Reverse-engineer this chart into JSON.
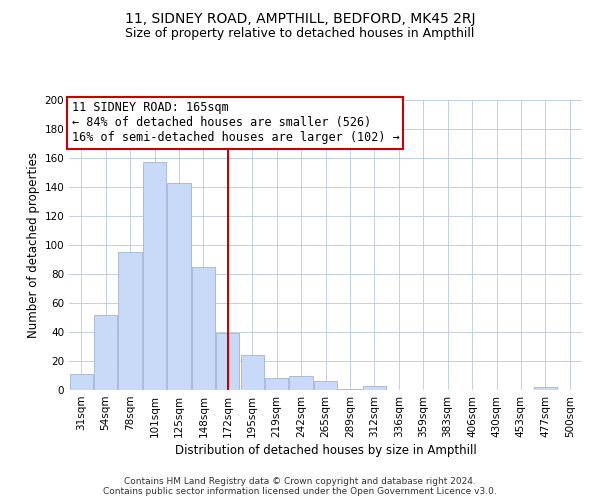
{
  "title": "11, SIDNEY ROAD, AMPTHILL, BEDFORD, MK45 2RJ",
  "subtitle": "Size of property relative to detached houses in Ampthill",
  "xlabel": "Distribution of detached houses by size in Ampthill",
  "ylabel": "Number of detached properties",
  "footer_line1": "Contains HM Land Registry data © Crown copyright and database right 2024.",
  "footer_line2": "Contains public sector information licensed under the Open Government Licence v3.0.",
  "annotation_line1": "11 SIDNEY ROAD: 165sqm",
  "annotation_line2": "← 84% of detached houses are smaller (526)",
  "annotation_line3": "16% of semi-detached houses are larger (102) →",
  "bar_labels": [
    "31sqm",
    "54sqm",
    "78sqm",
    "101sqm",
    "125sqm",
    "148sqm",
    "172sqm",
    "195sqm",
    "219sqm",
    "242sqm",
    "265sqm",
    "289sqm",
    "312sqm",
    "336sqm",
    "359sqm",
    "383sqm",
    "406sqm",
    "430sqm",
    "453sqm",
    "477sqm",
    "500sqm"
  ],
  "bar_values": [
    11,
    52,
    95,
    157,
    143,
    85,
    39,
    24,
    8,
    10,
    6,
    1,
    3,
    0,
    0,
    0,
    0,
    0,
    0,
    2,
    0
  ],
  "bar_color": "#c9daf8",
  "bar_edge_color": "#a0b4d6",
  "vline_color": "#cc0000",
  "ylim": [
    0,
    200
  ],
  "yticks": [
    0,
    20,
    40,
    60,
    80,
    100,
    120,
    140,
    160,
    180,
    200
  ],
  "bg_color": "#ffffff",
  "grid_color": "#c0d0e8",
  "annotation_box_edge": "#cc0000",
  "title_fontsize": 10,
  "subtitle_fontsize": 9,
  "axis_label_fontsize": 8.5,
  "tick_fontsize": 7.5,
  "annotation_fontsize": 8.5,
  "footer_fontsize": 6.5
}
